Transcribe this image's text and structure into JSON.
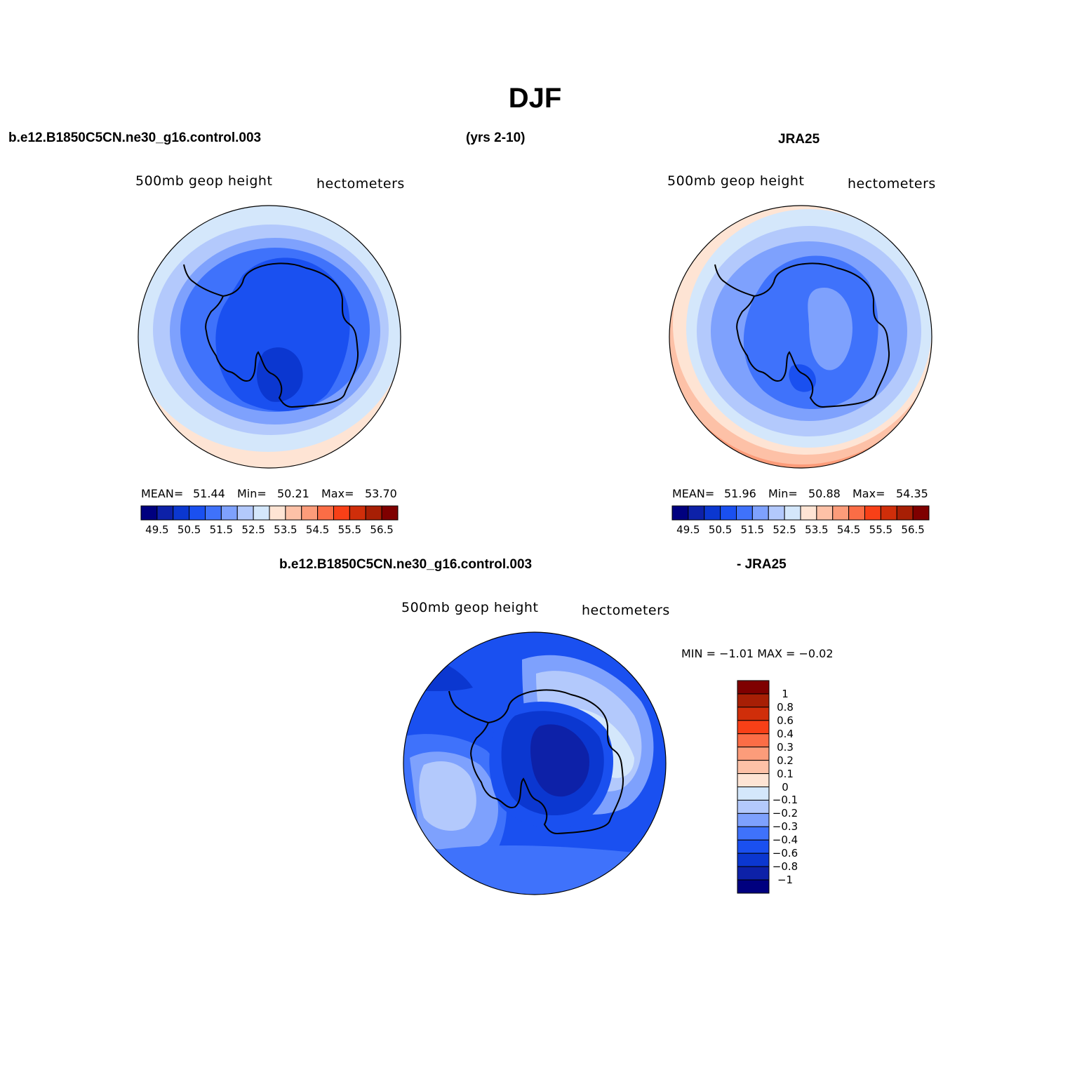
{
  "figure": {
    "title": "DJF",
    "case_name": "b.e12.B1850C5CN.ne30_g16.control.003",
    "years": "(yrs 2-10)",
    "obs_name": "JRA25",
    "diff_case_name": "b.e12.B1850C5CN.ne30_g16.control.003",
    "diff_obs_name": "- JRA25"
  },
  "colors": {
    "abs_levels": [
      "#00007f",
      "#0d21a8",
      "#0b37d0",
      "#1a50f0",
      "#3f72fb",
      "#7ea1fd",
      "#b3c9fc",
      "#d4e7fb",
      "#fee4d4",
      "#fdc1a7",
      "#fc9c7a",
      "#fb6d46",
      "#f84017",
      "#d02e0a",
      "#a71f05",
      "#7f0000"
    ],
    "diff_levels": [
      "#00007f",
      "#0d21a8",
      "#0b37d0",
      "#1a50f0",
      "#3f72fb",
      "#7ea1fd",
      "#b3c9fc",
      "#d4e7fb",
      "#fee4d4",
      "#fdc1a7",
      "#fc9c7a",
      "#fb6d46",
      "#f84017",
      "#d02e0a",
      "#a71f05",
      "#7f0000"
    ],
    "coastline": "#000000"
  },
  "chart_data": [
    {
      "type": "map",
      "projection": "south-polar-stereographic",
      "variable_label": "500mb geop height",
      "units_label": "hectometers",
      "stats": {
        "mean_label": "MEAN=",
        "mean": "51.44",
        "min_label": "Min=",
        "min": "50.21",
        "max_label": "Max=",
        "max": "53.70"
      },
      "colorbar": {
        "orientation": "horizontal",
        "ticks": [
          "49.5",
          "50.5",
          "51.5",
          "52.5",
          "53.5",
          "54.5",
          "55.5",
          "56.5"
        ]
      }
    },
    {
      "type": "map",
      "projection": "south-polar-stereographic",
      "variable_label": "500mb geop height",
      "units_label": "hectometers",
      "stats": {
        "mean_label": "MEAN=",
        "mean": "51.96",
        "min_label": "Min=",
        "min": "50.88",
        "max_label": "Max=",
        "max": "54.35"
      },
      "colorbar": {
        "orientation": "horizontal",
        "ticks": [
          "49.5",
          "50.5",
          "51.5",
          "52.5",
          "53.5",
          "54.5",
          "55.5",
          "56.5"
        ]
      }
    },
    {
      "type": "map",
      "projection": "south-polar-stereographic",
      "variable_label": "500mb geop height",
      "units_label": "hectometers",
      "stats_text": "MIN =  −1.01  MAX =  −0.02",
      "colorbar": {
        "orientation": "vertical",
        "ticks": [
          "1",
          "0.8",
          "0.6",
          "0.4",
          "0.3",
          "0.2",
          "0.1",
          "0",
          "−0.1",
          "−0.2",
          "−0.3",
          "−0.4",
          "−0.6",
          "−0.8",
          "−1"
        ]
      }
    }
  ]
}
